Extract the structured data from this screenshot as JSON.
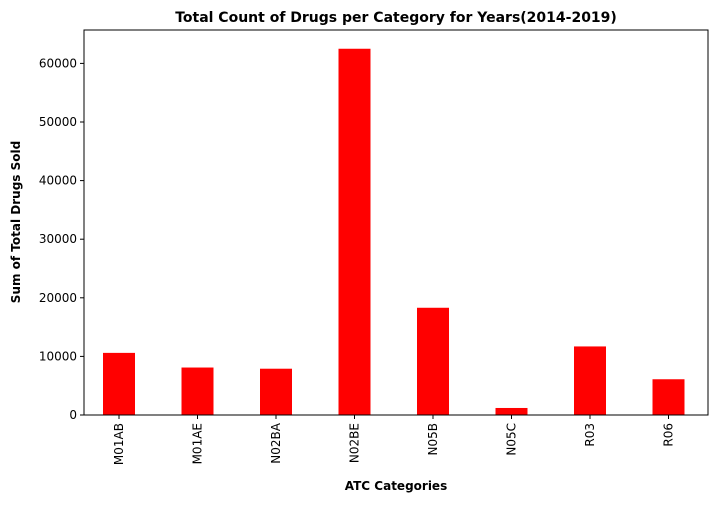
{
  "chart_data": {
    "type": "bar",
    "title": "Total Count of  Drugs per Category for Years(2014-2019)",
    "xlabel": "ATC Categories",
    "ylabel": "Sum of Total Drugs Sold",
    "categories": [
      "M01AB",
      "M01AE",
      "N02BA",
      "N02BE",
      "N05B",
      "N05C",
      "R03",
      "R06"
    ],
    "values": [
      10600,
      8100,
      7900,
      62500,
      18300,
      1200,
      11700,
      6100
    ],
    "ylim": [
      0,
      65700
    ],
    "yticks": [
      0,
      10000,
      20000,
      30000,
      40000,
      50000,
      60000
    ],
    "grid": false,
    "legend": "none",
    "colors": {
      "bar": "#ff0000",
      "title": "#ff0000",
      "axis": "#000000"
    }
  }
}
